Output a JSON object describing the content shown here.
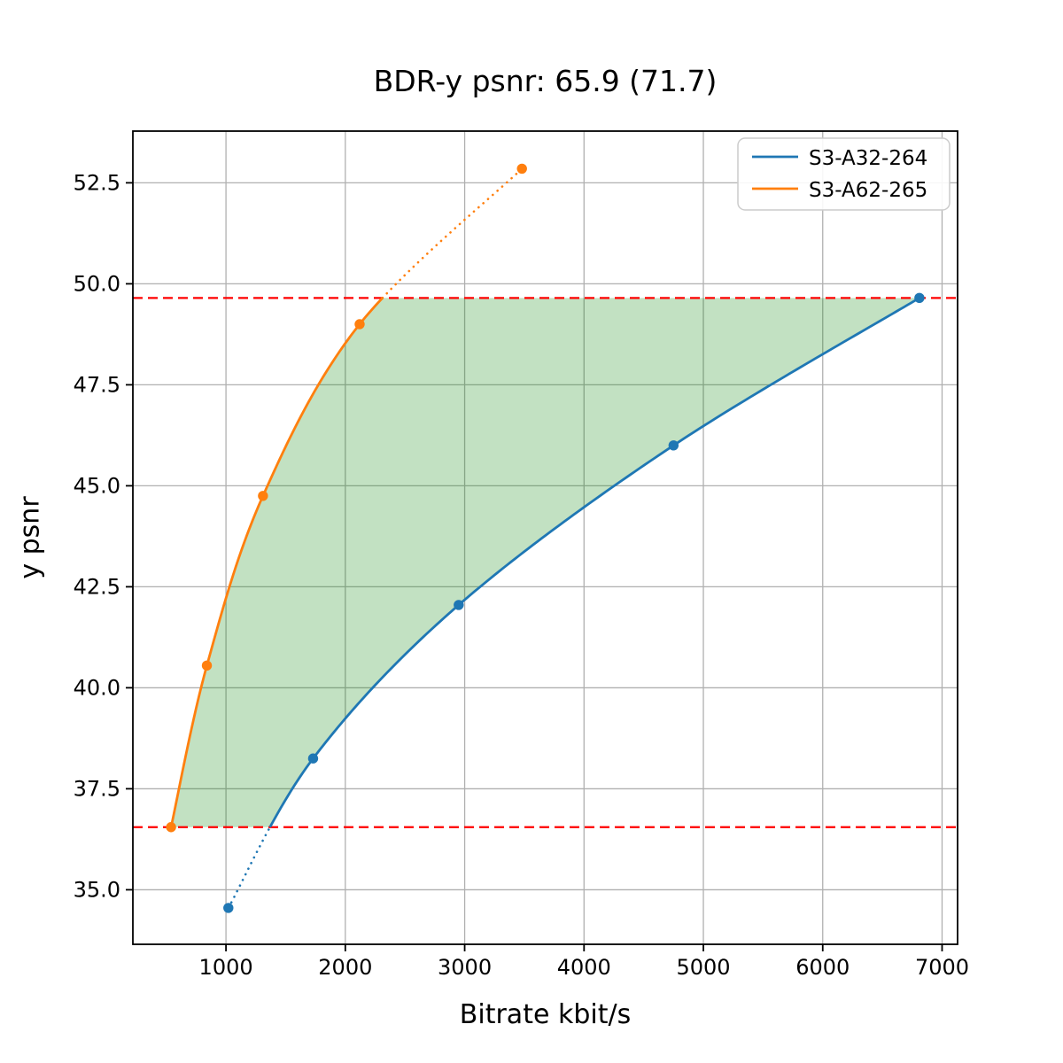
{
  "chart_data": {
    "type": "line",
    "title": "BDR-y psnr: 65.9 (71.7)",
    "xlabel": "Bitrate kbit/s",
    "ylabel": "y psnr",
    "xlim": [
      220,
      7130
    ],
    "ylim": [
      33.65,
      53.78
    ],
    "grid": true,
    "grid_color": "#b0b0b0",
    "background": "#ffffff",
    "x_ticks": {
      "values": [
        1000,
        2000,
        3000,
        4000,
        5000,
        6000,
        7000
      ],
      "labels": [
        "1000",
        "2000",
        "3000",
        "4000",
        "5000",
        "6000",
        "7000"
      ]
    },
    "y_ticks": {
      "values": [
        35.0,
        37.5,
        40.0,
        42.5,
        45.0,
        47.5,
        50.0,
        52.5
      ],
      "labels": [
        "35.0",
        "37.5",
        "40.0",
        "42.5",
        "45.0",
        "47.5",
        "50.0",
        "52.5"
      ]
    },
    "series": [
      {
        "name": "S3-A32-264",
        "color": "#1f77b4",
        "x": [
          1020,
          1730,
          2950,
          4750,
          6810
        ],
        "y": [
          34.55,
          38.25,
          42.05,
          46.0,
          49.65
        ],
        "dotted_segment": "below_lower_bound"
      },
      {
        "name": "S3-A62-265",
        "color": "#ff7f0e",
        "x": [
          540,
          840,
          1310,
          2120,
          3480
        ],
        "y": [
          36.55,
          40.55,
          44.75,
          49.0,
          52.85
        ],
        "dotted_segment": "above_upper_bound"
      }
    ],
    "hlines": [
      {
        "y": 49.65,
        "color": "#ff0000",
        "style": "dashed"
      },
      {
        "y": 36.55,
        "color": "#ff0000",
        "style": "dashed"
      }
    ],
    "shaded_region": {
      "fill": "#008000",
      "opacity": 0.24,
      "description": "area between the two rate-distortion curves clipped between the dashed bounds"
    },
    "legend": {
      "position": "upper right",
      "entries": [
        "S3-A32-264",
        "S3-A62-265"
      ]
    }
  }
}
